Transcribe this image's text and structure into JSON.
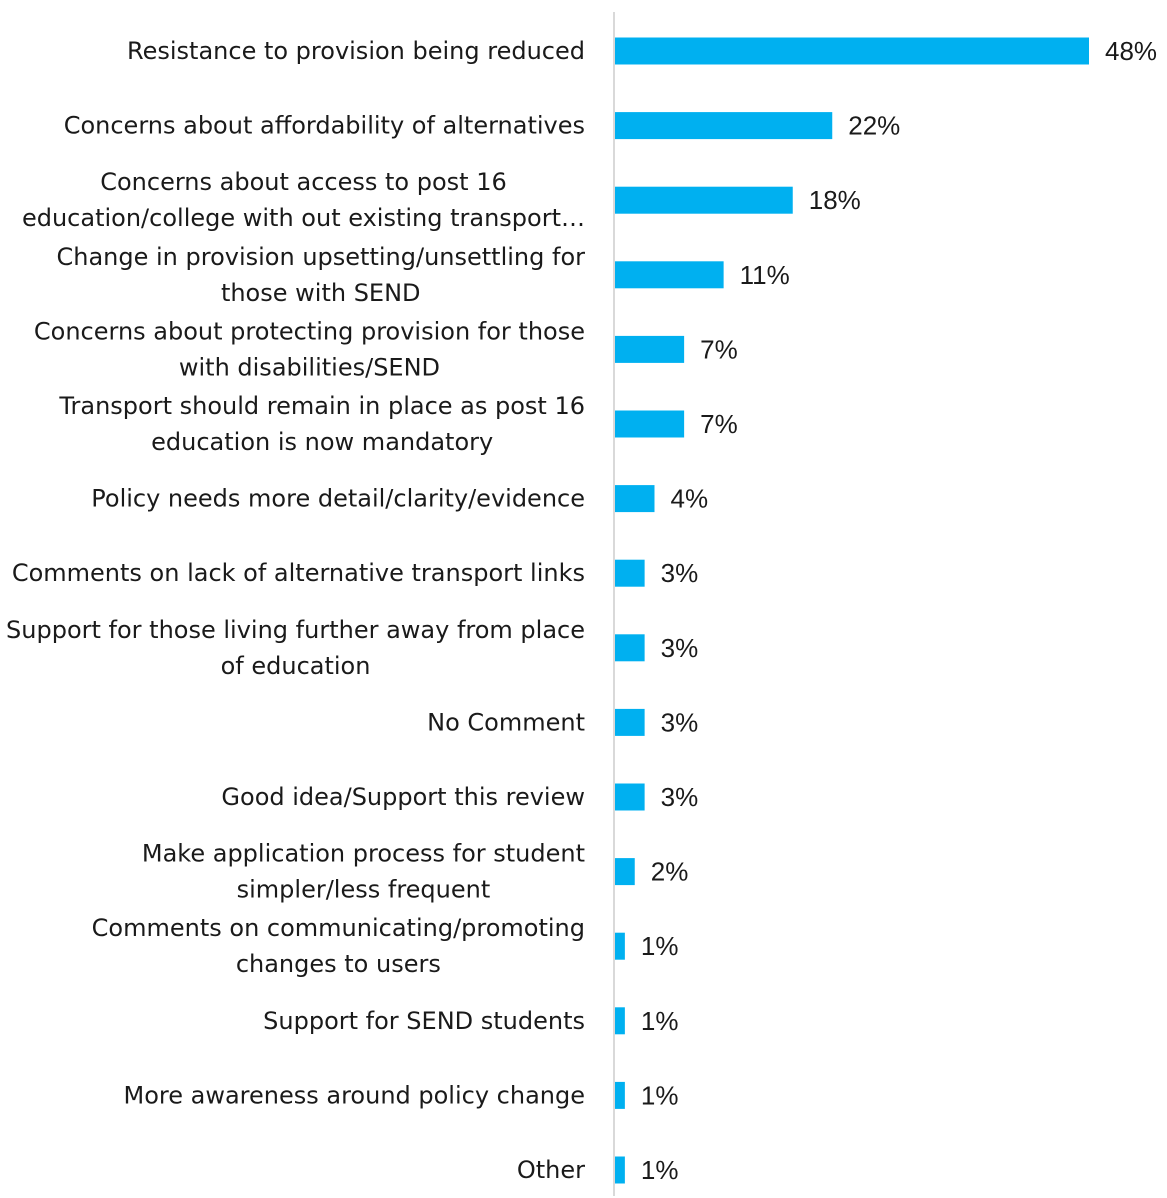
{
  "chart_data": {
    "type": "bar",
    "orientation": "horizontal",
    "title": "",
    "xlabel": "",
    "ylabel": "",
    "xlim": [
      0,
      48
    ],
    "grid": false,
    "legend": "none",
    "bar_color": "#00b0f0",
    "axis_color": "#d9d9d9",
    "categories": [
      [
        "Resistance to provision being reduced"
      ],
      [
        "Concerns about affordability of alternatives"
      ],
      [
        "Concerns about access to post 16",
        "education/college with out existing transport…"
      ],
      [
        "Change in provision upsetting/unsettling for",
        "those with SEND"
      ],
      [
        "Concerns about protecting provision for those",
        "with disabilities/SEND"
      ],
      [
        "Transport should remain in place as post 16",
        "education is now mandatory"
      ],
      [
        "Policy needs more detail/clarity/evidence"
      ],
      [
        "Comments on lack of alternative transport links"
      ],
      [
        "Support for those living further away from place",
        "of education"
      ],
      [
        "No Comment"
      ],
      [
        "Good idea/Support this review"
      ],
      [
        "Make application process for student",
        "simpler/less frequent"
      ],
      [
        "Comments on communicating/promoting",
        "changes to users"
      ],
      [
        "Support for SEND students"
      ],
      [
        "More awareness around policy change"
      ],
      [
        "Other"
      ]
    ],
    "values": [
      48,
      22,
      18,
      11,
      7,
      7,
      4,
      3,
      3,
      3,
      3,
      2,
      1,
      1,
      1,
      1
    ],
    "value_labels": [
      "48%",
      "22%",
      "18%",
      "11%",
      "7%",
      "7%",
      "4%",
      "3%",
      "3%",
      "3%",
      "3%",
      "2%",
      "1%",
      "1%",
      "1%",
      "1%"
    ]
  }
}
